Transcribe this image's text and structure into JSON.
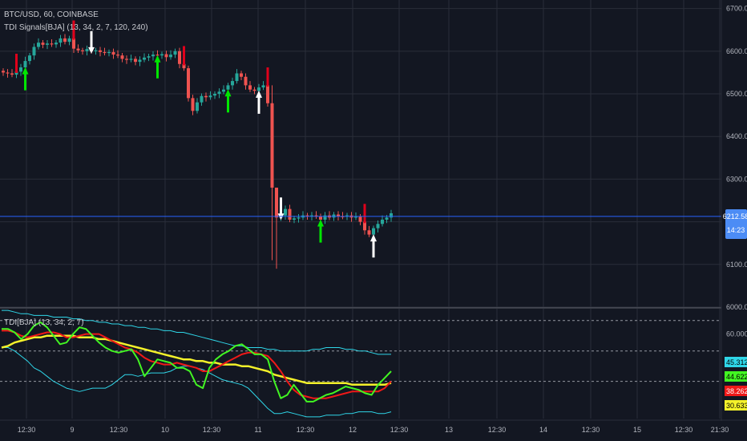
{
  "header": {
    "symbol_line": "BTC/USD, 60, COINBASE",
    "indicator_line": "TDI Signals[BJA] (13, 34, 2, 7, 120, 240)"
  },
  "sub_header": {
    "indicator_line": "TDI[BJA] (13, 34, 2, 7)"
  },
  "colors": {
    "background": "#131722",
    "grid": "#2a2e39",
    "up_candle": "#26a69a",
    "down_candle": "#ef5350",
    "price_line": "#2962ff",
    "price_tag": "#4c8cf5",
    "signal_down_red": "#e0001b",
    "signal_up_green": "#00e600",
    "signal_white": "#ffffff",
    "band": "#2fd6e8",
    "rsi_green": "#42f522",
    "signal_red": "#f01818",
    "market_yellow": "#f4f12a"
  },
  "price_axis": {
    "labels": [
      "6700.00",
      "6600.00",
      "6500.00",
      "6400.00",
      "6300.00",
      "6200.00",
      "6100.00",
      "6000.00"
    ],
    "current_price": "6212.58",
    "countdown": "14:23"
  },
  "indicator_axis": {
    "labels": [
      "60.0000"
    ],
    "tags": [
      {
        "text": "45.3128",
        "color": "#2fd6e8",
        "text_color": "#000000",
        "value": 45.3
      },
      {
        "text": "44.6226",
        "color": "#42f522",
        "text_color": "#000000",
        "value": 44.6
      },
      {
        "text": "38.2624",
        "color": "#f01818",
        "text_color": "#ffffff",
        "value": 38.3
      },
      {
        "text": "30.6330",
        "color": "#f4f12a",
        "text_color": "#000000",
        "value": 30.6
      }
    ]
  },
  "time_axis": {
    "labels": [
      "12:30",
      "9",
      "12:30",
      "10",
      "12:30",
      "11",
      "12:30",
      "12",
      "12:30",
      "13",
      "12:30",
      "14",
      "12:30",
      "15",
      "12:30",
      "21:30"
    ]
  },
  "chart_data": {
    "type": "candlestick",
    "x_unit": "hourly bar index",
    "ylim": [
      6000,
      6720
    ],
    "closes": [
      6550,
      6548,
      6545,
      6552,
      6562,
      6577,
      6590,
      6610,
      6620,
      6615,
      6618,
      6616,
      6620,
      6630,
      6622,
      6630,
      6606,
      6602,
      6600,
      6605,
      6600,
      6602,
      6598,
      6596,
      6598,
      6592,
      6590,
      6582,
      6580,
      6582,
      6575,
      6580,
      6585,
      6588,
      6592,
      6590,
      6593,
      6586,
      6592,
      6600,
      6570,
      6560,
      6490,
      6460,
      6480,
      6495,
      6492,
      6496,
      6500,
      6505,
      6510,
      6520,
      6530,
      6548,
      6540,
      6520,
      6510,
      6507,
      6515,
      6520,
      6478,
      6280,
      6210,
      6215,
      6230,
      6205,
      6208,
      6210,
      6215,
      6213,
      6215,
      6213,
      6205,
      6215,
      6210,
      6217,
      6213,
      6212,
      6215,
      6210,
      6212,
      6200,
      6180,
      6170,
      6185,
      6195,
      6205,
      6210,
      6220
    ],
    "extremes": [
      {
        "bar": 61,
        "high": 6520,
        "low": 6110
      },
      {
        "bar": 62,
        "high": 6230,
        "low": 6090
      }
    ],
    "signals": [
      {
        "bar": 3,
        "dir": "down",
        "color": "red"
      },
      {
        "bar": 5,
        "dir": "up",
        "color": "green"
      },
      {
        "bar": 16,
        "dir": "down",
        "color": "red"
      },
      {
        "bar": 20,
        "dir": "down",
        "color": "white"
      },
      {
        "bar": 35,
        "dir": "up",
        "color": "green"
      },
      {
        "bar": 41,
        "dir": "down",
        "color": "red"
      },
      {
        "bar": 51,
        "dir": "up",
        "color": "green"
      },
      {
        "bar": 58,
        "dir": "up",
        "color": "white"
      },
      {
        "bar": 60,
        "dir": "down",
        "color": "red"
      },
      {
        "bar": 63,
        "dir": "down",
        "color": "white"
      },
      {
        "bar": 72,
        "dir": "up",
        "color": "green"
      },
      {
        "bar": 82,
        "dir": "down",
        "color": "red"
      },
      {
        "bar": 84,
        "dir": "up",
        "color": "white"
      }
    ],
    "tdi": {
      "ylim": [
        10,
        75
      ],
      "levels": [
        68,
        50,
        32
      ],
      "upper_band": [
        74,
        74,
        73,
        72,
        72,
        71,
        71,
        71,
        70,
        70,
        70,
        69,
        69,
        68,
        68,
        67,
        67,
        66,
        66,
        65,
        65,
        64,
        64,
        63,
        63,
        62,
        62,
        61,
        61,
        60,
        59,
        58,
        57,
        56,
        55,
        54,
        53,
        53,
        52,
        52,
        52,
        51,
        51,
        50,
        50,
        50,
        50,
        50,
        51,
        51,
        52,
        52,
        52,
        51,
        51,
        50,
        50,
        49,
        48,
        48,
        48
      ],
      "lower_band": [
        52,
        52,
        50,
        47,
        44,
        40,
        38,
        35,
        32,
        30,
        28,
        27,
        26,
        27,
        28,
        28,
        28,
        30,
        33,
        36,
        36,
        35,
        36,
        37,
        37,
        37,
        38,
        40,
        41,
        41,
        40,
        39,
        37,
        35,
        33,
        32,
        31,
        30,
        28,
        24,
        20,
        16,
        13,
        13,
        14,
        13,
        12,
        11,
        11,
        11,
        12,
        12,
        12,
        13,
        13,
        14,
        14,
        14,
        13,
        13,
        14
      ],
      "rsi": [
        63,
        63,
        61,
        57,
        60,
        65,
        67,
        64,
        59,
        54,
        55,
        60,
        64,
        63,
        59,
        55,
        52,
        50,
        49,
        50,
        51,
        45,
        35,
        40,
        45,
        44,
        43,
        40,
        40,
        38,
        30,
        28,
        40,
        45,
        48,
        50,
        53,
        54,
        51,
        48,
        48,
        45,
        32,
        22,
        24,
        30,
        25,
        20,
        20,
        22,
        24,
        25,
        27,
        29,
        28,
        27,
        25,
        24,
        30,
        34,
        38
      ],
      "signal": [
        62,
        62,
        61,
        59,
        58,
        59,
        60,
        61,
        61,
        60,
        58,
        58,
        59,
        60,
        60,
        60,
        58,
        56,
        54,
        52,
        51,
        49,
        46,
        44,
        43,
        42,
        42,
        43,
        42,
        41,
        40,
        38,
        38,
        40,
        42,
        44,
        46,
        48,
        49,
        49,
        48,
        47,
        43,
        38,
        32,
        27,
        24,
        23,
        22,
        22,
        22,
        23,
        24,
        25,
        26,
        26,
        26,
        26,
        26,
        28,
        32
      ],
      "market_base": [
        52,
        53,
        55,
        56,
        57,
        58,
        58,
        59,
        59,
        59,
        59,
        59,
        58,
        58,
        58,
        57,
        57,
        56,
        55,
        54,
        53,
        52,
        51,
        50,
        49,
        48,
        47,
        46,
        45,
        45,
        44,
        44,
        43,
        43,
        42,
        42,
        42,
        41,
        41,
        40,
        39,
        38,
        36,
        35,
        34,
        33,
        32,
        31,
        31,
        31,
        31,
        31,
        31,
        31,
        30,
        30,
        30,
        30,
        30,
        30,
        31
      ]
    }
  }
}
